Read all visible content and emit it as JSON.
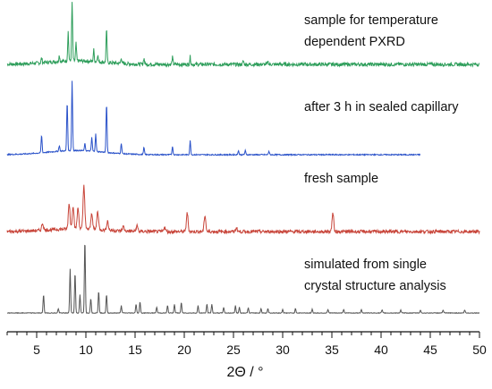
{
  "chart_data": {
    "type": "line",
    "xlabel": "2Θ / °",
    "xlim": [
      2,
      50
    ],
    "x_ticks": [
      5,
      10,
      15,
      20,
      25,
      30,
      35,
      40,
      45,
      50
    ],
    "x_tick_labels": [
      "5",
      "10",
      "15",
      "20",
      "25",
      "30",
      "35",
      "40",
      "45",
      "50"
    ],
    "y_axis": "none",
    "grid": false,
    "series": [
      {
        "name_lines": [
          "sample for temperature",
          "dependent PXRD"
        ],
        "color": "#2e9e5b",
        "x_range": [
          2,
          50
        ],
        "peaks": [
          [
            5.5,
            0.08
          ],
          [
            7.3,
            0.1
          ],
          [
            8.2,
            0.5
          ],
          [
            8.6,
            1.0
          ],
          [
            9.0,
            0.3
          ],
          [
            10.8,
            0.2
          ],
          [
            11.2,
            0.12
          ],
          [
            12.1,
            0.55
          ],
          [
            13.6,
            0.1
          ],
          [
            15.9,
            0.1
          ],
          [
            18.8,
            0.12
          ],
          [
            20.6,
            0.13
          ],
          [
            26.0,
            0.06
          ],
          [
            28.5,
            0.05
          ]
        ]
      },
      {
        "name_lines": [
          "after 3 h in sealed capillary"
        ],
        "color": "#2a52c9",
        "x_range": [
          2,
          44
        ],
        "peaks": [
          [
            5.5,
            0.25
          ],
          [
            7.3,
            0.08
          ],
          [
            8.1,
            0.7
          ],
          [
            8.6,
            1.0
          ],
          [
            9.9,
            0.1
          ],
          [
            10.6,
            0.2
          ],
          [
            11.0,
            0.25
          ],
          [
            12.1,
            0.7
          ],
          [
            13.6,
            0.15
          ],
          [
            15.9,
            0.1
          ],
          [
            18.8,
            0.12
          ],
          [
            20.6,
            0.2
          ],
          [
            25.5,
            0.06
          ],
          [
            26.2,
            0.06
          ],
          [
            28.6,
            0.05
          ]
        ]
      },
      {
        "name_lines": [
          "fresh sample"
        ],
        "color": "#c8453a",
        "x_range": [
          2,
          50
        ],
        "peaks": [
          [
            5.6,
            0.15
          ],
          [
            8.3,
            0.55
          ],
          [
            8.7,
            0.5
          ],
          [
            9.2,
            0.45
          ],
          [
            9.8,
            0.95
          ],
          [
            10.6,
            0.35
          ],
          [
            11.2,
            0.4
          ],
          [
            12.2,
            0.2
          ],
          [
            13.8,
            0.1
          ],
          [
            15.2,
            0.12
          ],
          [
            18.0,
            0.1
          ],
          [
            20.3,
            0.4
          ],
          [
            22.1,
            0.35
          ],
          [
            25.3,
            0.08
          ],
          [
            35.1,
            0.4
          ]
        ]
      },
      {
        "name_lines": [
          "simulated from single",
          "crystal structure analysis"
        ],
        "color": "#555555",
        "x_range": [
          2,
          50
        ],
        "peaks": [
          [
            5.7,
            0.25
          ],
          [
            7.2,
            0.06
          ],
          [
            8.4,
            0.6
          ],
          [
            8.9,
            0.55
          ],
          [
            9.4,
            0.25
          ],
          [
            9.9,
            1.0
          ],
          [
            10.5,
            0.2
          ],
          [
            11.3,
            0.3
          ],
          [
            12.1,
            0.25
          ],
          [
            13.6,
            0.1
          ],
          [
            15.1,
            0.12
          ],
          [
            15.5,
            0.15
          ],
          [
            17.2,
            0.08
          ],
          [
            18.3,
            0.1
          ],
          [
            19.0,
            0.12
          ],
          [
            19.7,
            0.14
          ],
          [
            21.4,
            0.1
          ],
          [
            22.3,
            0.12
          ],
          [
            22.8,
            0.12
          ],
          [
            24.0,
            0.08
          ],
          [
            25.2,
            0.1
          ],
          [
            25.6,
            0.08
          ],
          [
            26.5,
            0.07
          ],
          [
            27.8,
            0.06
          ],
          [
            28.5,
            0.06
          ],
          [
            30.0,
            0.05
          ],
          [
            31.3,
            0.06
          ],
          [
            33.0,
            0.05
          ],
          [
            34.6,
            0.05
          ],
          [
            36.2,
            0.05
          ],
          [
            38.0,
            0.05
          ],
          [
            40.1,
            0.04
          ],
          [
            42.0,
            0.04
          ],
          [
            44.0,
            0.04
          ],
          [
            46.3,
            0.04
          ],
          [
            48.5,
            0.04
          ]
        ]
      }
    ]
  }
}
